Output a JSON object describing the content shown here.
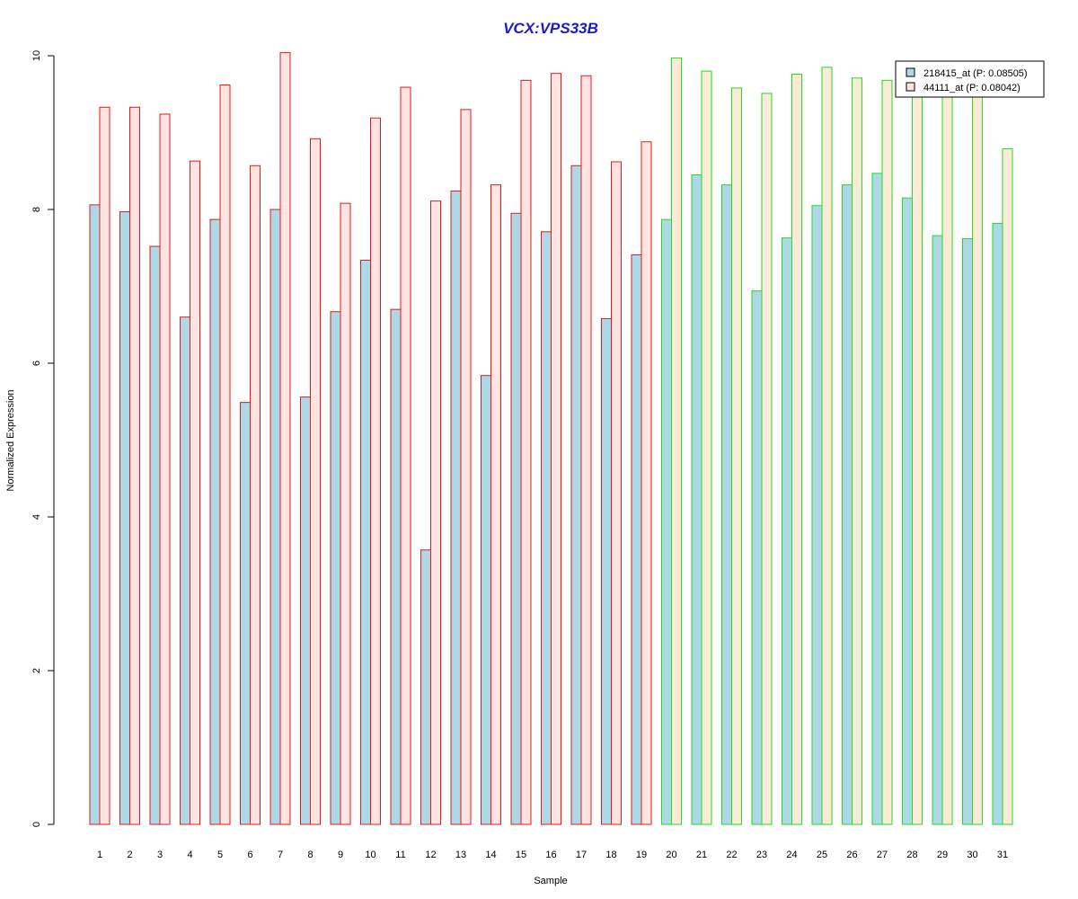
{
  "chart_data": {
    "type": "bar",
    "title": "VCX:VPS33B",
    "xlabel": "Sample",
    "ylabel": "Normalized Expression",
    "ylim": [
      0,
      10
    ],
    "yticks": [
      0,
      2,
      4,
      6,
      8,
      10
    ],
    "grid": false,
    "legend_position": "top-right",
    "categories": [
      "1",
      "2",
      "3",
      "4",
      "5",
      "6",
      "7",
      "8",
      "9",
      "10",
      "11",
      "12",
      "13",
      "14",
      "15",
      "16",
      "17",
      "18",
      "19",
      "20",
      "21",
      "22",
      "23",
      "24",
      "25",
      "26",
      "27",
      "28",
      "29",
      "30",
      "31"
    ],
    "groups": [
      {
        "samples": [
          "1",
          "2",
          "3",
          "4",
          "5",
          "6",
          "7",
          "8",
          "9",
          "10",
          "11",
          "12",
          "13",
          "14",
          "15",
          "16",
          "17",
          "18",
          "19"
        ],
        "border_color": "#e31a1c"
      },
      {
        "samples": [
          "20",
          "21",
          "22",
          "23",
          "24",
          "25",
          "26",
          "27",
          "28",
          "29",
          "30",
          "31"
        ],
        "border_color": "#22dd22"
      }
    ],
    "series": [
      {
        "name": "218415_at (P: 0.08505)",
        "color": "#add8e6",
        "values": [
          8.06,
          7.97,
          7.52,
          6.6,
          7.87,
          5.49,
          8.0,
          5.56,
          6.67,
          7.34,
          6.7,
          3.57,
          8.24,
          5.84,
          7.95,
          7.71,
          8.57,
          6.58,
          7.41,
          7.87,
          8.45,
          8.32,
          6.94,
          7.63,
          8.05,
          8.32,
          8.47,
          8.15,
          7.66,
          7.62,
          7.82
        ]
      },
      {
        "name": "44111_at (P: 0.08042)",
        "color": "#ffe4e1",
        "color_group2": "#faebd7",
        "values": [
          9.33,
          9.33,
          9.24,
          8.63,
          9.62,
          8.57,
          10.04,
          8.92,
          8.08,
          9.19,
          9.59,
          8.11,
          9.3,
          8.32,
          9.68,
          9.77,
          9.74,
          8.62,
          8.88,
          9.97,
          9.8,
          9.58,
          9.51,
          9.76,
          9.85,
          9.71,
          9.68,
          9.7,
          9.65,
          9.73,
          8.79
        ]
      }
    ]
  }
}
